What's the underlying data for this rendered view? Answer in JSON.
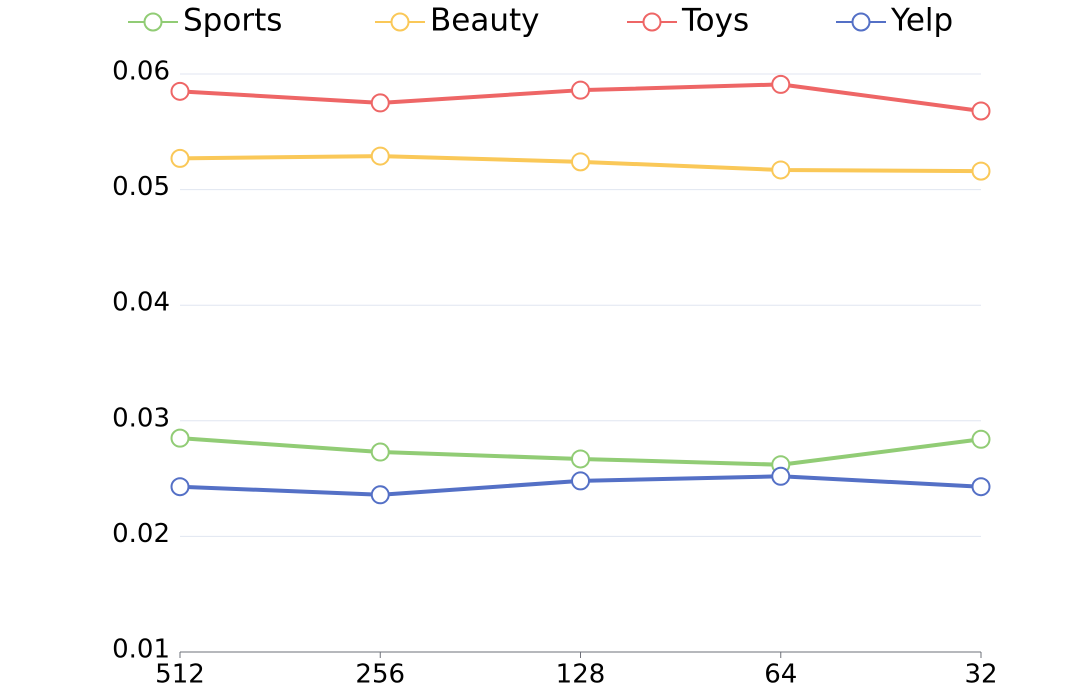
{
  "chart_data": {
    "type": "line",
    "categories": [
      "512",
      "256",
      "128",
      "64",
      "32"
    ],
    "series": [
      {
        "name": "Sports",
        "color": "#91cc75",
        "values": [
          0.0285,
          0.0273,
          0.0267,
          0.0262,
          0.0284
        ]
      },
      {
        "name": "Beauty",
        "color": "#fac858",
        "values": [
          0.0527,
          0.0529,
          0.0524,
          0.0517,
          0.0516
        ]
      },
      {
        "name": "Toys",
        "color": "#ee6666",
        "values": [
          0.0585,
          0.0575,
          0.0586,
          0.0591,
          0.0568
        ]
      },
      {
        "name": "Yelp",
        "color": "#5470c6",
        "values": [
          0.0243,
          0.0236,
          0.0248,
          0.0252,
          0.0243
        ]
      }
    ],
    "ylim": [
      0.01,
      0.06
    ],
    "yticks": [
      0.01,
      0.02,
      0.03,
      0.04,
      0.05,
      0.06
    ],
    "grid": true,
    "legend": "top"
  }
}
